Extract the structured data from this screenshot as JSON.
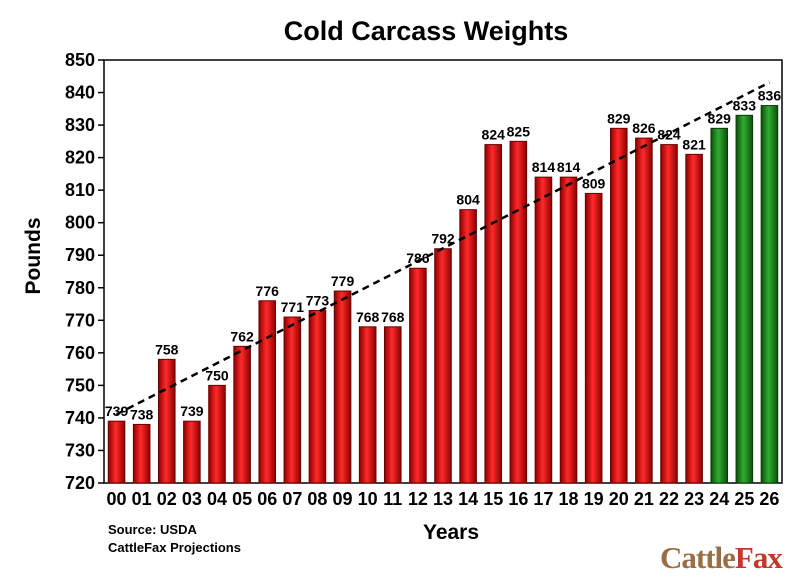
{
  "chart_data": {
    "type": "bar",
    "title": "Cold Carcass Weights",
    "xlabel": "Years",
    "ylabel": "Pounds",
    "ylim": [
      720,
      850
    ],
    "ytick_step": 10,
    "grid": false,
    "categories": [
      "00",
      "01",
      "02",
      "03",
      "04",
      "05",
      "06",
      "07",
      "08",
      "09",
      "10",
      "11",
      "12",
      "13",
      "14",
      "15",
      "16",
      "17",
      "18",
      "19",
      "20",
      "21",
      "22",
      "23",
      "24",
      "25",
      "26"
    ],
    "values": [
      739,
      738,
      758,
      739,
      750,
      762,
      776,
      771,
      773,
      779,
      768,
      768,
      786,
      792,
      804,
      824,
      825,
      814,
      814,
      809,
      829,
      826,
      824,
      821,
      829,
      833,
      836
    ],
    "projection_start_index": 24,
    "colors": {
      "actual": "#e01010",
      "projection": "#1e8c1e",
      "trend": "#000000"
    },
    "trendline": {
      "type": "linear",
      "style": "dashed"
    }
  },
  "notes": {
    "source": "Source: USDA",
    "projections": "CattleFax Projections"
  },
  "logo": {
    "part1": "Cattle",
    "part2": "Fax"
  }
}
